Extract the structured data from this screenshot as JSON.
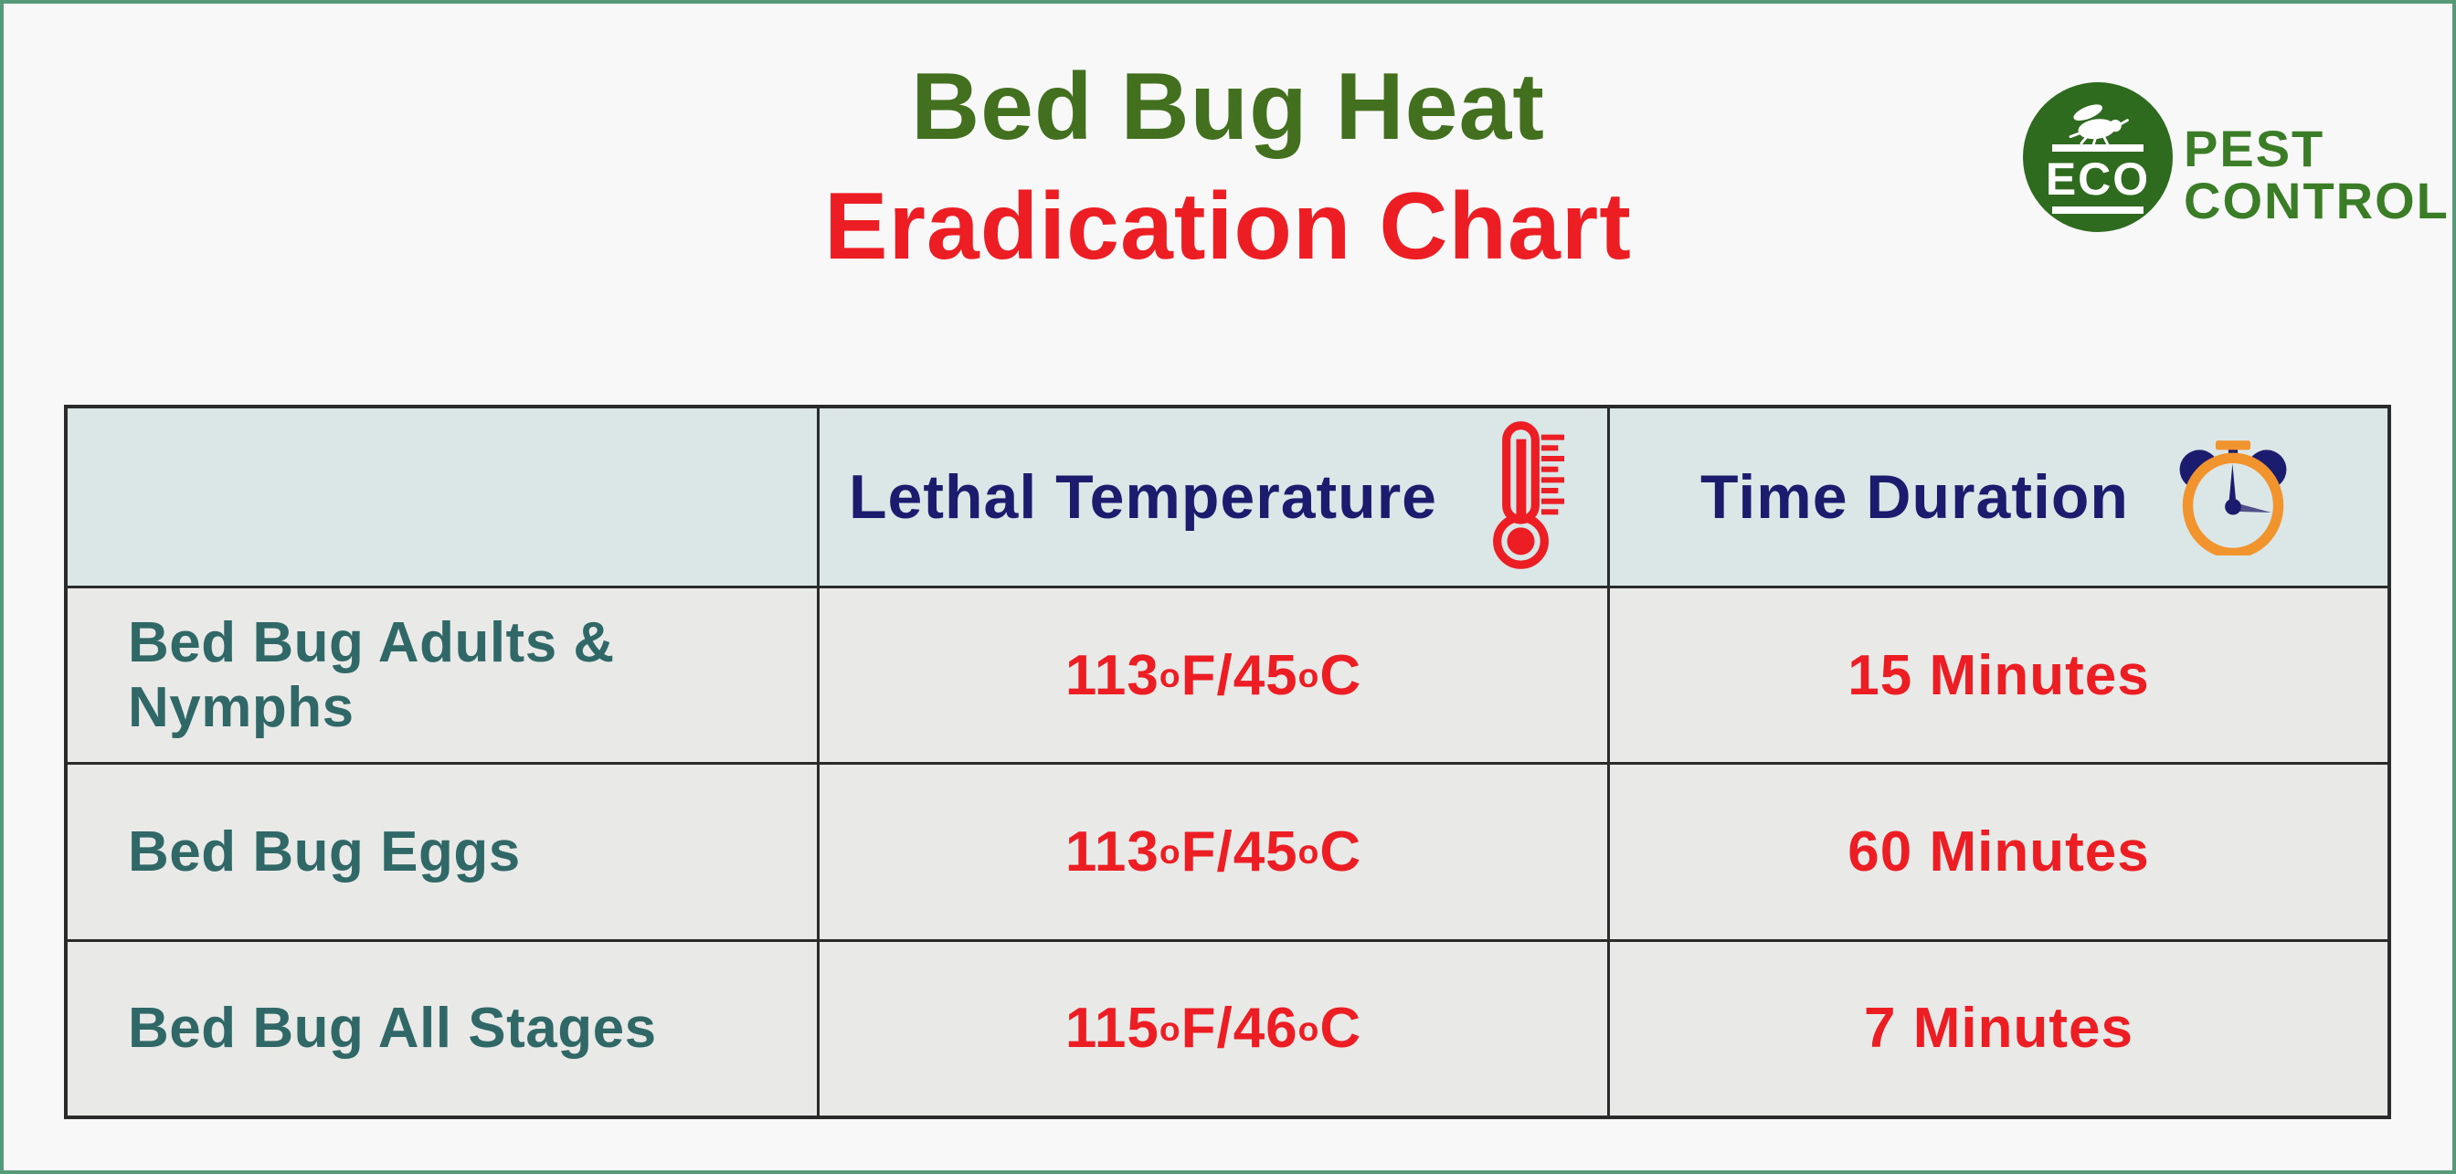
{
  "page": {
    "title_line1": "Bed Bug Heat",
    "title_line2": "Eradication Chart"
  },
  "logo": {
    "badge_text": "ECO",
    "brand_line1": "PEST",
    "brand_line2": "CONTROL"
  },
  "icons": {
    "temperature": "thermometer-icon",
    "duration": "alarm-clock-icon",
    "logo_bug": "bug-icon"
  },
  "colors": {
    "title_green": "#42701f",
    "accent_red": "#ed1d24",
    "header_navy": "#1c1c6e",
    "stage_teal": "#306868",
    "logo_green": "#2e6b1f",
    "brand_green": "#3a7d26",
    "clock_orange": "#f1942d",
    "header_bg": "#dbe6e6",
    "row_bg": "#e9e9e7",
    "page_bg": "#f8f8f8",
    "frame_green": "#569a78",
    "grid_dark": "#2b2b2b"
  },
  "chart_data": {
    "type": "table",
    "title": "Bed Bug Heat Eradication Chart",
    "columns": [
      "",
      "Lethal Temperature",
      "Time Duration"
    ],
    "rows": [
      [
        "Bed Bug Adults & Nymphs",
        "113°F/45°C",
        "15 Minutes"
      ],
      [
        "Bed Bug Eggs",
        "113°F/45°C",
        "60 Minutes"
      ],
      [
        "Bed Bug All Stages",
        "115°F/46°C",
        "7 Minutes"
      ]
    ]
  }
}
